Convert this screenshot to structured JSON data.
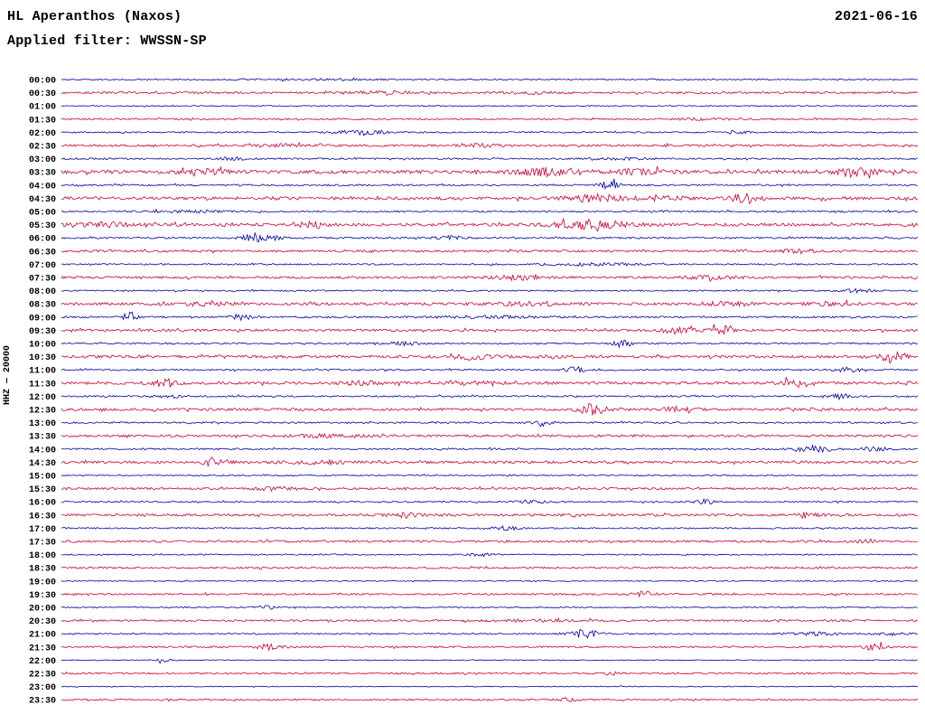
{
  "header": {
    "station": "HL Aperanthos (Naxos)",
    "date": "2021-06-16",
    "filter": "Applied filter: WWSSN-SP"
  },
  "y_axis_label": "HHZ — 20000",
  "chart_data": {
    "type": "line",
    "subtype": "helicorder-seismogram",
    "title": "HL Aperanthos (Naxos)",
    "date": "2021-06-16",
    "filter": "WWSSN-SP",
    "channel_scale_label": "HHZ — 20000",
    "row_interval_minutes": 30,
    "first_row": "00:00",
    "last_row": "23:30",
    "legend_position": "none",
    "grid": false,
    "colors": {
      "b": "#0000aa",
      "r": "#cc0033"
    },
    "rows": [
      {
        "t": "00:00",
        "c": "b",
        "n": 0.7,
        "e": [
          [
            0.3,
            0.6,
            80
          ]
        ]
      },
      {
        "t": "00:30",
        "c": "r",
        "n": 1.1,
        "e": [
          [
            0.38,
            1.5,
            40
          ],
          [
            0.55,
            1.2,
            30
          ]
        ]
      },
      {
        "t": "01:00",
        "c": "b",
        "n": 0.6,
        "e": []
      },
      {
        "t": "01:30",
        "c": "r",
        "n": 0.9,
        "e": [
          [
            0.75,
            0.8,
            40
          ]
        ]
      },
      {
        "t": "02:00",
        "c": "b",
        "n": 0.8,
        "e": [
          [
            0.35,
            2.8,
            28
          ],
          [
            0.79,
            1.5,
            14
          ]
        ]
      },
      {
        "t": "02:30",
        "c": "r",
        "n": 1.2,
        "e": [
          [
            0.25,
            1.2,
            30
          ],
          [
            0.48,
            1.5,
            26
          ]
        ]
      },
      {
        "t": "03:00",
        "c": "b",
        "n": 0.9,
        "e": [
          [
            0.2,
            1.2,
            20
          ],
          [
            0.65,
            1.0,
            30
          ]
        ]
      },
      {
        "t": "03:30",
        "c": "r",
        "n": 1.9,
        "e": [
          [
            0.17,
            2.0,
            30
          ],
          [
            0.57,
            3.5,
            40
          ],
          [
            0.68,
            2.0,
            30
          ],
          [
            0.93,
            3.5,
            22
          ]
        ]
      },
      {
        "t": "04:00",
        "c": "b",
        "n": 0.9,
        "e": [
          [
            0.64,
            3.8,
            12
          ]
        ]
      },
      {
        "t": "04:30",
        "c": "r",
        "n": 1.7,
        "e": [
          [
            0.62,
            3.5,
            30
          ],
          [
            0.7,
            2.0,
            24
          ],
          [
            0.8,
            4.5,
            16
          ]
        ]
      },
      {
        "t": "05:00",
        "c": "b",
        "n": 0.9,
        "e": [
          [
            0.15,
            1.0,
            40
          ]
        ]
      },
      {
        "t": "05:30",
        "c": "r",
        "n": 1.6,
        "e": [
          [
            0.05,
            2.0,
            30
          ],
          [
            0.29,
            2.5,
            22
          ],
          [
            0.62,
            4.5,
            40
          ]
        ]
      },
      {
        "t": "06:00",
        "c": "b",
        "n": 1.0,
        "e": [
          [
            0.23,
            5.5,
            18
          ],
          [
            0.45,
            2.2,
            14
          ]
        ]
      },
      {
        "t": "06:30",
        "c": "r",
        "n": 1.2,
        "e": [
          [
            0.86,
            1.8,
            20
          ]
        ]
      },
      {
        "t": "07:00",
        "c": "b",
        "n": 0.8,
        "e": [
          [
            0.62,
            1.2,
            60
          ]
        ]
      },
      {
        "t": "07:30",
        "c": "r",
        "n": 1.3,
        "e": [
          [
            0.53,
            2.8,
            24
          ],
          [
            0.76,
            1.5,
            30
          ]
        ]
      },
      {
        "t": "08:00",
        "c": "b",
        "n": 0.8,
        "e": [
          [
            0.93,
            1.8,
            16
          ]
        ]
      },
      {
        "t": "08:30",
        "c": "r",
        "n": 1.5,
        "e": [
          [
            0.17,
            1.8,
            26
          ],
          [
            0.55,
            1.6,
            40
          ],
          [
            0.78,
            1.8,
            30
          ],
          [
            0.9,
            1.8,
            24
          ]
        ]
      },
      {
        "t": "09:00",
        "c": "b",
        "n": 1.0,
        "e": [
          [
            0.08,
            5.0,
            8
          ],
          [
            0.21,
            3.2,
            12
          ],
          [
            0.5,
            1.2,
            60
          ]
        ]
      },
      {
        "t": "09:30",
        "c": "r",
        "n": 1.3,
        "e": [
          [
            0.72,
            3.2,
            18
          ],
          [
            0.77,
            5.0,
            12
          ]
        ]
      },
      {
        "t": "10:00",
        "c": "b",
        "n": 0.9,
        "e": [
          [
            0.4,
            1.8,
            16
          ],
          [
            0.655,
            3.8,
            10
          ]
        ]
      },
      {
        "t": "10:30",
        "c": "r",
        "n": 1.5,
        "e": [
          [
            0.48,
            2.4,
            24
          ],
          [
            0.97,
            6.5,
            12
          ]
        ]
      },
      {
        "t": "11:00",
        "c": "b",
        "n": 0.9,
        "e": [
          [
            0.6,
            3.2,
            12
          ],
          [
            0.92,
            2.6,
            14
          ]
        ]
      },
      {
        "t": "11:30",
        "c": "r",
        "n": 1.5,
        "e": [
          [
            0.12,
            4.5,
            14
          ],
          [
            0.35,
            1.8,
            24
          ],
          [
            0.48,
            1.8,
            24
          ],
          [
            0.86,
            3.5,
            18
          ]
        ]
      },
      {
        "t": "12:00",
        "c": "b",
        "n": 0.9,
        "e": [
          [
            0.13,
            2.2,
            14
          ],
          [
            0.91,
            2.8,
            12
          ]
        ]
      },
      {
        "t": "12:30",
        "c": "r",
        "n": 1.4,
        "e": [
          [
            0.62,
            5.5,
            14
          ],
          [
            0.72,
            2.5,
            20
          ]
        ]
      },
      {
        "t": "13:00",
        "c": "b",
        "n": 0.9,
        "e": [
          [
            0.56,
            3.8,
            10
          ]
        ]
      },
      {
        "t": "13:30",
        "c": "r",
        "n": 1.3,
        "e": [
          [
            0.3,
            1.2,
            40
          ]
        ]
      },
      {
        "t": "14:00",
        "c": "b",
        "n": 0.9,
        "e": [
          [
            0.88,
            3.5,
            20
          ],
          [
            0.95,
            2.0,
            16
          ]
        ]
      },
      {
        "t": "14:30",
        "c": "r",
        "n": 1.4,
        "e": [
          [
            0.18,
            4.5,
            14
          ],
          [
            0.3,
            1.8,
            30
          ]
        ]
      },
      {
        "t": "15:00",
        "c": "b",
        "n": 0.7,
        "e": []
      },
      {
        "t": "15:30",
        "c": "r",
        "n": 1.2,
        "e": [
          [
            0.25,
            1.6,
            20
          ]
        ]
      },
      {
        "t": "16:00",
        "c": "b",
        "n": 0.8,
        "e": [
          [
            0.55,
            1.8,
            16
          ],
          [
            0.75,
            2.6,
            12
          ]
        ]
      },
      {
        "t": "16:30",
        "c": "r",
        "n": 1.3,
        "e": [
          [
            0.4,
            2.6,
            18
          ],
          [
            0.87,
            2.6,
            16
          ]
        ]
      },
      {
        "t": "17:00",
        "c": "b",
        "n": 0.8,
        "e": [
          [
            0.52,
            2.2,
            14
          ]
        ]
      },
      {
        "t": "17:30",
        "c": "r",
        "n": 1.2,
        "e": [
          [
            0.94,
            1.8,
            16
          ]
        ]
      },
      {
        "t": "18:00",
        "c": "b",
        "n": 0.7,
        "e": [
          [
            0.49,
            1.8,
            12
          ]
        ]
      },
      {
        "t": "18:30",
        "c": "r",
        "n": 1.0,
        "e": []
      },
      {
        "t": "19:00",
        "c": "b",
        "n": 0.6,
        "e": []
      },
      {
        "t": "19:30",
        "c": "r",
        "n": 1.0,
        "e": [
          [
            0.68,
            2.8,
            12
          ]
        ]
      },
      {
        "t": "20:00",
        "c": "b",
        "n": 0.7,
        "e": [
          [
            0.24,
            1.8,
            14
          ]
        ]
      },
      {
        "t": "20:30",
        "c": "r",
        "n": 1.0,
        "e": [
          [
            0.55,
            0.9,
            60
          ]
        ]
      },
      {
        "t": "21:00",
        "c": "b",
        "n": 0.7,
        "e": [
          [
            0.61,
            5.0,
            16
          ],
          [
            0.88,
            1.8,
            30
          ],
          [
            0.97,
            1.5,
            20
          ]
        ]
      },
      {
        "t": "21:30",
        "c": "r",
        "n": 1.0,
        "e": [
          [
            0.24,
            2.6,
            14
          ],
          [
            0.95,
            3.5,
            12
          ]
        ]
      },
      {
        "t": "22:00",
        "c": "b",
        "n": 0.5,
        "e": [
          [
            0.12,
            1.8,
            12
          ]
        ]
      },
      {
        "t": "22:30",
        "c": "r",
        "n": 0.9,
        "e": [
          [
            0.64,
            1.4,
            14
          ]
        ]
      },
      {
        "t": "23:00",
        "c": "b",
        "n": 0.5,
        "e": []
      },
      {
        "t": "23:30",
        "c": "r",
        "n": 0.9,
        "e": [
          [
            0.59,
            1.8,
            12
          ]
        ]
      }
    ]
  }
}
